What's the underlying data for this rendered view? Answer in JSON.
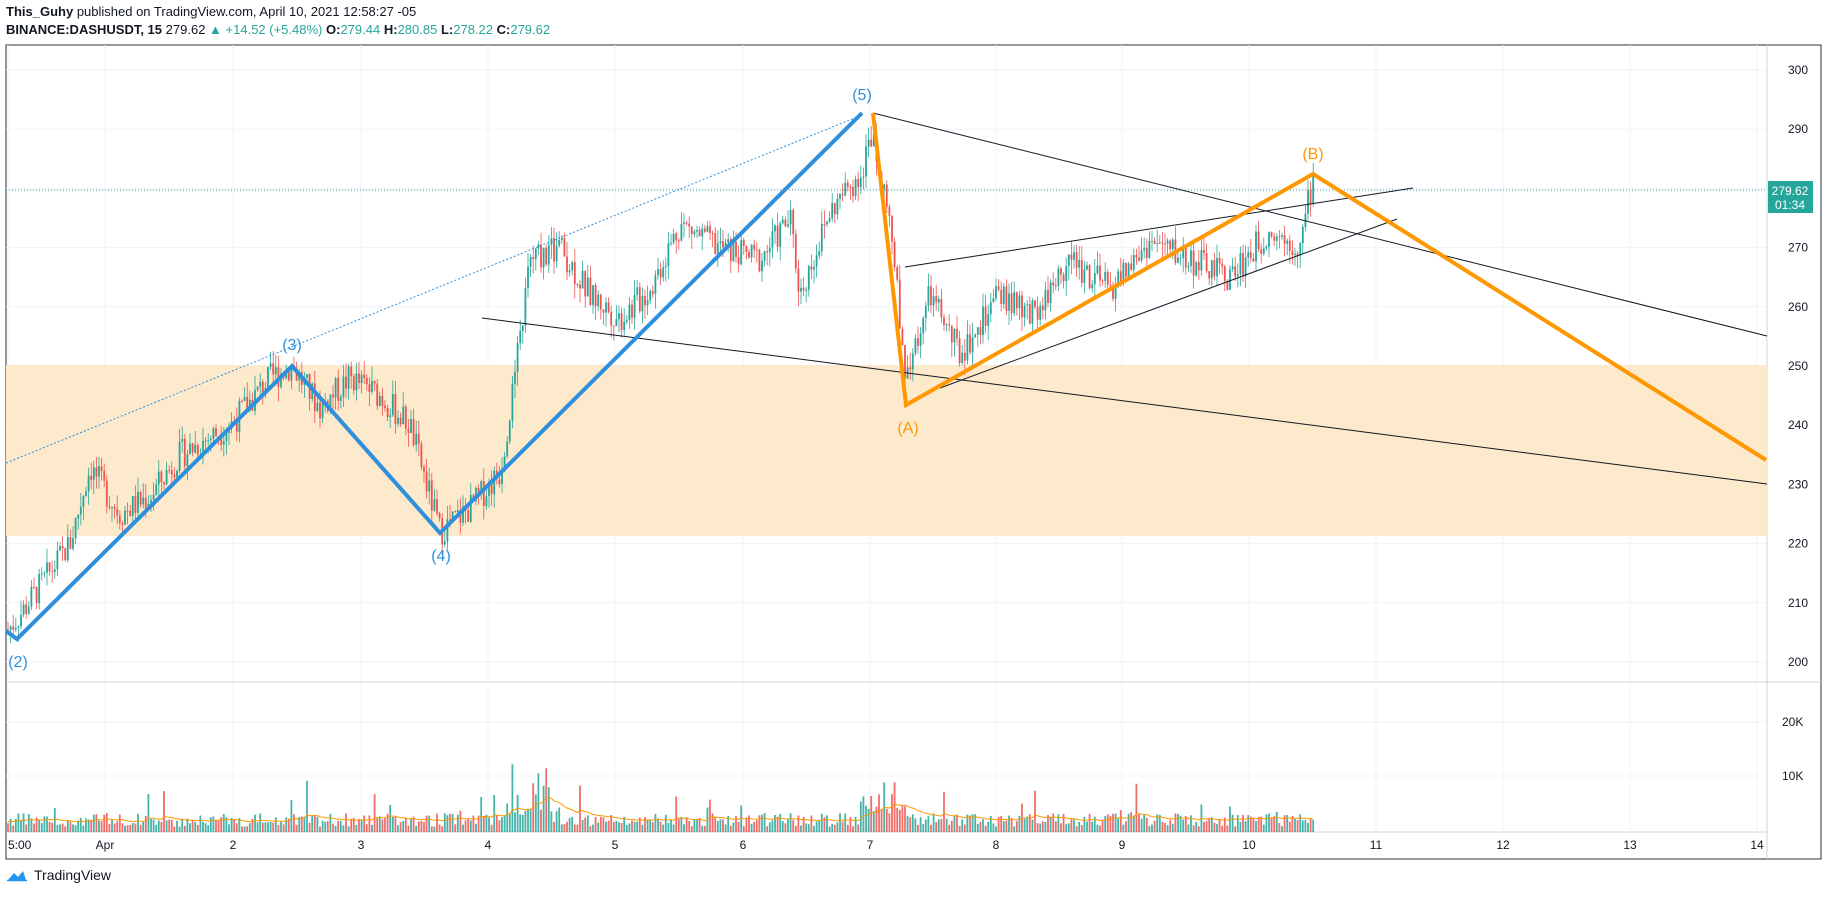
{
  "header": {
    "author": "This_Guhy",
    "published_text": "published on TradingView.com, April 10, 2021 12:58:27 -05",
    "symbol": "BINANCE:DASHUSDT, 15",
    "last_price": "279.62",
    "change": "▲ +14.52 (+5.48%)",
    "o_label": "O:",
    "o_value": "279.44",
    "h_label": "H:",
    "h_value": "280.85",
    "l_label": "L:",
    "l_value": "278.22",
    "c_label": "C:",
    "c_value": "279.62"
  },
  "price_axis": {
    "ticks": [
      "300",
      "290",
      "280",
      "270",
      "260",
      "250",
      "240",
      "230",
      "220",
      "210",
      "200"
    ],
    "last_price_tag": "279.62",
    "countdown_tag": "01:34"
  },
  "volume_axis": {
    "ticks": [
      "20K",
      "10K"
    ]
  },
  "time_axis": {
    "labels": [
      "5:00",
      "Apr",
      "2",
      "3",
      "4",
      "5",
      "6",
      "7",
      "8",
      "9",
      "10",
      "11",
      "12",
      "13",
      "14"
    ]
  },
  "annotations": {
    "wave_2": "(2)",
    "wave_3": "(3)",
    "wave_4": "(4)",
    "wave_5": "(5)",
    "wave_a": "(A)",
    "wave_b": "(B)"
  },
  "colors": {
    "impulse_blue": "#2f8fdb",
    "correction_orange": "#ff9800",
    "zone_fill": "#fde8c9",
    "up_candle": "#26a69a",
    "down_candle": "#ef5350",
    "price_tag_bg": "#26a69a"
  },
  "footer": {
    "brand": "TradingView",
    "logo_icon": "tradingview-cloud-logo"
  }
}
